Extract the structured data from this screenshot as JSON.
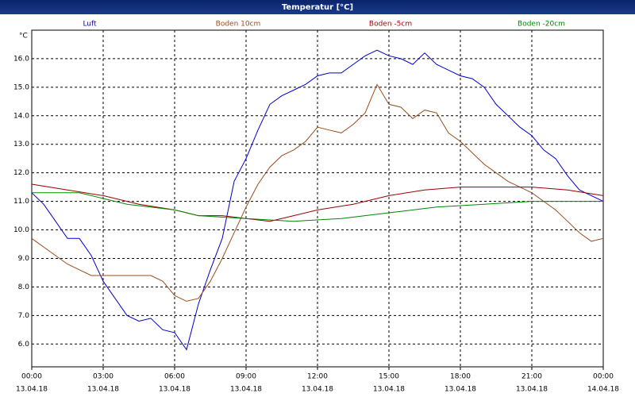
{
  "chart_data": {
    "type": "line",
    "title": "Temperatur [°C]",
    "y_unit": "°C",
    "xlim": [
      0,
      24
    ],
    "ylim": [
      5.2,
      17.0
    ],
    "xticks": [
      {
        "value": 0,
        "label": "00:00",
        "date": "13.04.18"
      },
      {
        "value": 3,
        "label": "03:00",
        "date": "13.04.18"
      },
      {
        "value": 6,
        "label": "06:00",
        "date": "13.04.18"
      },
      {
        "value": 9,
        "label": "09:00",
        "date": "13.04.18"
      },
      {
        "value": 12,
        "label": "12:00",
        "date": "13.04.18"
      },
      {
        "value": 15,
        "label": "15:00",
        "date": "13.04.18"
      },
      {
        "value": 18,
        "label": "18:00",
        "date": "13.04.18"
      },
      {
        "value": 21,
        "label": "21:00",
        "date": "13.04.18"
      },
      {
        "value": 24,
        "label": "00:00",
        "date": "14.04.18"
      }
    ],
    "yticks": [
      {
        "value": 6,
        "label": "6.0"
      },
      {
        "value": 7,
        "label": "7.0"
      },
      {
        "value": 8,
        "label": "8.0"
      },
      {
        "value": 9,
        "label": "9.0"
      },
      {
        "value": 10,
        "label": "10.0"
      },
      {
        "value": 11,
        "label": "11.0"
      },
      {
        "value": 12,
        "label": "12.0"
      },
      {
        "value": 13,
        "label": "13.0"
      },
      {
        "value": 14,
        "label": "14.0"
      },
      {
        "value": 15,
        "label": "15.0"
      },
      {
        "value": 16,
        "label": "16.0"
      }
    ],
    "grid": true,
    "series": [
      {
        "name": "Luft",
        "color": "#0000cc",
        "x": [
          0,
          0.5,
          1,
          1.5,
          2,
          2.5,
          3,
          3.5,
          4,
          4.5,
          5,
          5.5,
          6,
          6.5,
          7,
          7.5,
          8,
          8.5,
          9,
          9.5,
          10,
          10.5,
          11,
          11.5,
          12,
          12.5,
          13,
          13.5,
          14,
          14.5,
          15,
          15.5,
          16,
          16.5,
          17,
          17.5,
          18,
          18.5,
          19,
          19.5,
          20,
          20.5,
          21,
          21.5,
          22,
          22.5,
          23,
          23.5,
          24
        ],
        "values": [
          11.3,
          10.9,
          10.3,
          9.7,
          9.7,
          9.1,
          8.2,
          7.6,
          7.0,
          6.8,
          6.9,
          6.5,
          6.4,
          5.8,
          7.4,
          8.6,
          9.7,
          11.7,
          12.5,
          13.5,
          14.4,
          14.7,
          14.9,
          15.1,
          15.4,
          15.5,
          15.5,
          15.8,
          16.1,
          16.3,
          16.1,
          16.0,
          15.8,
          16.2,
          15.8,
          15.6,
          15.4,
          15.3,
          15.0,
          14.4,
          14.0,
          13.6,
          13.3,
          12.8,
          12.5,
          11.9,
          11.4,
          11.2,
          11.0
        ]
      },
      {
        "name": "Boden 10cm",
        "color": "#994d1a",
        "x": [
          0,
          0.5,
          1,
          1.5,
          2,
          2.5,
          3,
          3.5,
          4,
          4.5,
          5,
          5.5,
          6,
          6.5,
          7,
          7.5,
          8,
          8.5,
          9,
          9.5,
          10,
          10.5,
          11,
          11.5,
          12,
          12.5,
          13,
          13.5,
          14,
          14.5,
          15,
          15.5,
          16,
          16.5,
          17,
          17.5,
          18,
          18.5,
          19,
          19.5,
          20,
          20.5,
          21,
          21.5,
          22,
          22.5,
          23,
          23.5,
          24
        ],
        "values": [
          9.7,
          9.4,
          9.1,
          8.8,
          8.6,
          8.4,
          8.4,
          8.4,
          8.4,
          8.4,
          8.4,
          8.2,
          7.7,
          7.5,
          7.6,
          8.2,
          9.0,
          9.9,
          10.8,
          11.6,
          12.2,
          12.6,
          12.8,
          13.1,
          13.6,
          13.5,
          13.4,
          13.7,
          14.1,
          15.1,
          14.4,
          14.3,
          13.9,
          14.2,
          14.1,
          13.4,
          13.1,
          12.7,
          12.3,
          12.0,
          11.7,
          11.5,
          11.3,
          11.0,
          10.7,
          10.3,
          9.9,
          9.6,
          9.7
        ]
      },
      {
        "name": "Boden -5cm",
        "color": "#990000",
        "x": [
          0,
          1.5,
          3,
          4.5,
          6,
          7,
          8,
          9,
          10,
          11,
          12,
          13.5,
          15,
          16.5,
          18,
          19.5,
          21,
          22.5,
          24
        ],
        "values": [
          11.6,
          11.4,
          11.2,
          10.9,
          10.7,
          10.5,
          10.5,
          10.4,
          10.3,
          10.5,
          10.7,
          10.9,
          11.2,
          11.4,
          11.5,
          11.5,
          11.5,
          11.4,
          11.2
        ]
      },
      {
        "name": "Boden -20cm",
        "color": "#008800",
        "x": [
          0,
          2,
          3,
          4,
          6,
          7,
          9,
          11,
          13,
          15,
          17,
          19,
          21,
          24
        ],
        "values": [
          11.3,
          11.3,
          11.1,
          10.9,
          10.7,
          10.5,
          10.4,
          10.3,
          10.4,
          10.6,
          10.8,
          10.9,
          11.0,
          11.0
        ]
      }
    ]
  }
}
